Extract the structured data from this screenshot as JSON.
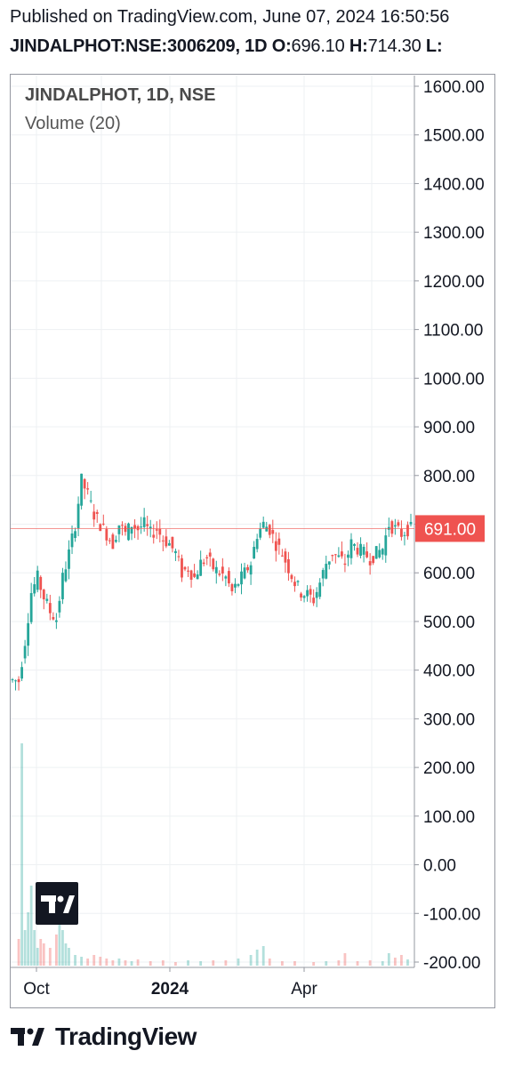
{
  "header": {
    "published": "Published on TradingView.com, June 07, 2024 16:50:56",
    "symbol_line": "JINDALPHOT:NSE:3006209, 1D",
    "ohlc": [
      {
        "k": "O:",
        "v": "696.10"
      },
      {
        "k": "H:",
        "v": "714.30"
      },
      {
        "k": "L:",
        "v": ""
      }
    ]
  },
  "legend": {
    "title": "JINDALPHOT, 1D, NSE",
    "volume": "Volume (20)"
  },
  "footer": {
    "brand": "TradingView"
  },
  "colors": {
    "up": "#26a69a",
    "down": "#ef5350",
    "grid": "#eef0f3",
    "axis_text": "#131722",
    "price_line": "#ef5350"
  },
  "chart_data": {
    "type": "candlestick",
    "y_axis": {
      "ticks": [
        "1600.00",
        "1500.00",
        "1400.00",
        "1300.00",
        "1200.00",
        "1100.00",
        "1000.00",
        "900.00",
        "800.00",
        "700.00",
        "600.00",
        "500.00",
        "400.00",
        "300.00",
        "200.00",
        "100.00",
        "0.00",
        "-100.00",
        "-200.00"
      ],
      "range": [
        -200,
        1600
      ]
    },
    "x_axis": {
      "ticks": [
        "Oct",
        "2024",
        "Apr"
      ]
    },
    "last_price": "691.00",
    "last_price_value": 691,
    "price_path": [
      [
        0,
        380
      ],
      [
        3,
        378
      ],
      [
        5,
        460
      ],
      [
        7,
        560
      ],
      [
        9,
        590
      ],
      [
        11,
        550
      ],
      [
        13,
        520
      ],
      [
        15,
        505
      ],
      [
        17,
        590
      ],
      [
        19,
        640
      ],
      [
        21,
        700
      ],
      [
        23,
        790
      ],
      [
        25,
        760
      ],
      [
        27,
        720
      ],
      [
        29,
        700
      ],
      [
        31,
        680
      ],
      [
        33,
        660
      ],
      [
        35,
        700
      ],
      [
        37,
        680
      ],
      [
        39,
        700
      ],
      [
        41,
        690
      ],
      [
        43,
        700
      ],
      [
        45,
        680
      ],
      [
        47,
        690
      ],
      [
        49,
        670
      ],
      [
        51,
        660
      ],
      [
        53,
        640
      ],
      [
        55,
        600
      ],
      [
        57,
        610
      ],
      [
        59,
        590
      ],
      [
        61,
        620
      ],
      [
        63,
        630
      ],
      [
        65,
        610
      ],
      [
        67,
        600
      ],
      [
        69,
        590
      ],
      [
        71,
        560
      ],
      [
        73,
        580
      ],
      [
        75,
        600
      ],
      [
        77,
        620
      ],
      [
        79,
        680
      ],
      [
        81,
        700
      ],
      [
        83,
        690
      ],
      [
        85,
        660
      ],
      [
        87,
        640
      ],
      [
        89,
        610
      ],
      [
        91,
        580
      ],
      [
        93,
        560
      ],
      [
        95,
        555
      ],
      [
        97,
        545
      ],
      [
        99,
        580
      ],
      [
        101,
        620
      ],
      [
        103,
        640
      ],
      [
        105,
        630
      ],
      [
        107,
        620
      ],
      [
        109,
        660
      ],
      [
        111,
        650
      ],
      [
        113,
        640
      ],
      [
        115,
        630
      ],
      [
        117,
        640
      ],
      [
        119,
        650
      ],
      [
        121,
        700
      ],
      [
        123,
        690
      ],
      [
        125,
        680
      ],
      [
        127,
        690
      ]
    ],
    "volume_bars": [
      [
        2,
        30
      ],
      [
        3,
        250
      ],
      [
        4,
        40
      ],
      [
        5,
        60
      ],
      [
        6,
        90
      ],
      [
        7,
        40
      ],
      [
        8,
        20
      ],
      [
        9,
        30
      ],
      [
        10,
        25
      ],
      [
        12,
        20
      ],
      [
        14,
        35
      ],
      [
        15,
        55
      ],
      [
        16,
        40
      ],
      [
        17,
        25
      ],
      [
        18,
        20
      ],
      [
        20,
        12
      ],
      [
        22,
        10
      ],
      [
        24,
        8
      ],
      [
        26,
        12
      ],
      [
        28,
        10
      ],
      [
        30,
        8
      ],
      [
        32,
        6
      ],
      [
        34,
        8
      ],
      [
        36,
        6
      ],
      [
        38,
        5
      ],
      [
        40,
        7
      ],
      [
        44,
        5
      ],
      [
        48,
        6
      ],
      [
        52,
        4
      ],
      [
        56,
        6
      ],
      [
        60,
        5
      ],
      [
        64,
        6
      ],
      [
        68,
        6
      ],
      [
        72,
        8
      ],
      [
        76,
        12
      ],
      [
        78,
        18
      ],
      [
        80,
        22
      ],
      [
        82,
        8
      ],
      [
        86,
        5
      ],
      [
        90,
        5
      ],
      [
        96,
        4
      ],
      [
        100,
        5
      ],
      [
        104,
        6
      ],
      [
        106,
        14
      ],
      [
        110,
        5
      ],
      [
        114,
        6
      ],
      [
        118,
        5
      ],
      [
        120,
        14
      ],
      [
        122,
        9
      ],
      [
        124,
        12
      ],
      [
        126,
        7
      ]
    ]
  }
}
